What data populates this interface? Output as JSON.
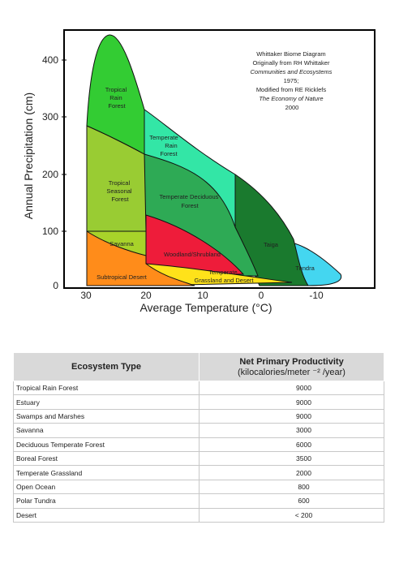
{
  "diagram": {
    "axis": {
      "ylabel": "Annual Precipitation (cm)",
      "xlabel": "Average Temperature (°C)",
      "y_ticks": [
        "400",
        "300",
        "200",
        "100",
        "0"
      ],
      "x_ticks": [
        "30",
        "20",
        "10",
        "0",
        "-10"
      ]
    },
    "credit": [
      "Whittaker Biome Diagram",
      "Originally from RH Whittaker",
      "Communities and Ecosystems",
      "1975;",
      "Modified from RE Ricklefs",
      "The Economy of Nature",
      "2000"
    ],
    "regions": {
      "tropical_rain_forest": [
        "Tropical",
        "Rain",
        "Forest"
      ],
      "tropical_seasonal_forest": [
        "Tropical",
        "Seasonal",
        "Forest"
      ],
      "temperate_rain_forest": [
        "Temperate",
        "Rain",
        "Forest"
      ],
      "temperate_deciduous_forest": [
        "Temperate Deciduous",
        "Forest"
      ],
      "savanna": "Savanna",
      "woodland_shrubland": "Woodland/Shrubland",
      "taiga": "Taiga",
      "tundra": "Tundra",
      "subtropical_desert": "Subtropical Desert",
      "temperate_grassland": [
        "Temperate",
        "Grassland and Desert"
      ]
    },
    "colors": {
      "tropical_rain_forest": "#33cc33",
      "tropical_seasonal_forest": "#99cc33",
      "temperate_rain_forest": "#33e6a6",
      "temperate_deciduous_forest": "#2eaa55",
      "savanna": "#a8d32a",
      "woodland_shrubland": "#ee1c3a",
      "taiga": "#1a7a2e",
      "tundra": "#44d6f0",
      "subtropical_desert": "#ff8c1a",
      "temperate_grassland": "#ffe21a"
    }
  },
  "table": {
    "headers": {
      "ecosystem": "Ecosystem Type",
      "npp_title": "Net Primary Productivity",
      "npp_units": "(kilocalories/meter ⁻² /year)"
    },
    "rows": [
      {
        "type": "Tropical Rain Forest",
        "npp": "9000"
      },
      {
        "type": "Estuary",
        "npp": "9000"
      },
      {
        "type": "Swamps and Marshes",
        "npp": "9000"
      },
      {
        "type": "Savanna",
        "npp": "3000"
      },
      {
        "type": "Deciduous Temperate Forest",
        "npp": "6000"
      },
      {
        "type": "Boreal Forest",
        "npp": "3500"
      },
      {
        "type": "Temperate Grassland",
        "npp": "2000"
      },
      {
        "type": "Open Ocean",
        "npp": "800"
      },
      {
        "type": "Polar Tundra",
        "npp": "600"
      },
      {
        "type": "Desert",
        "npp": "< 200"
      }
    ]
  }
}
